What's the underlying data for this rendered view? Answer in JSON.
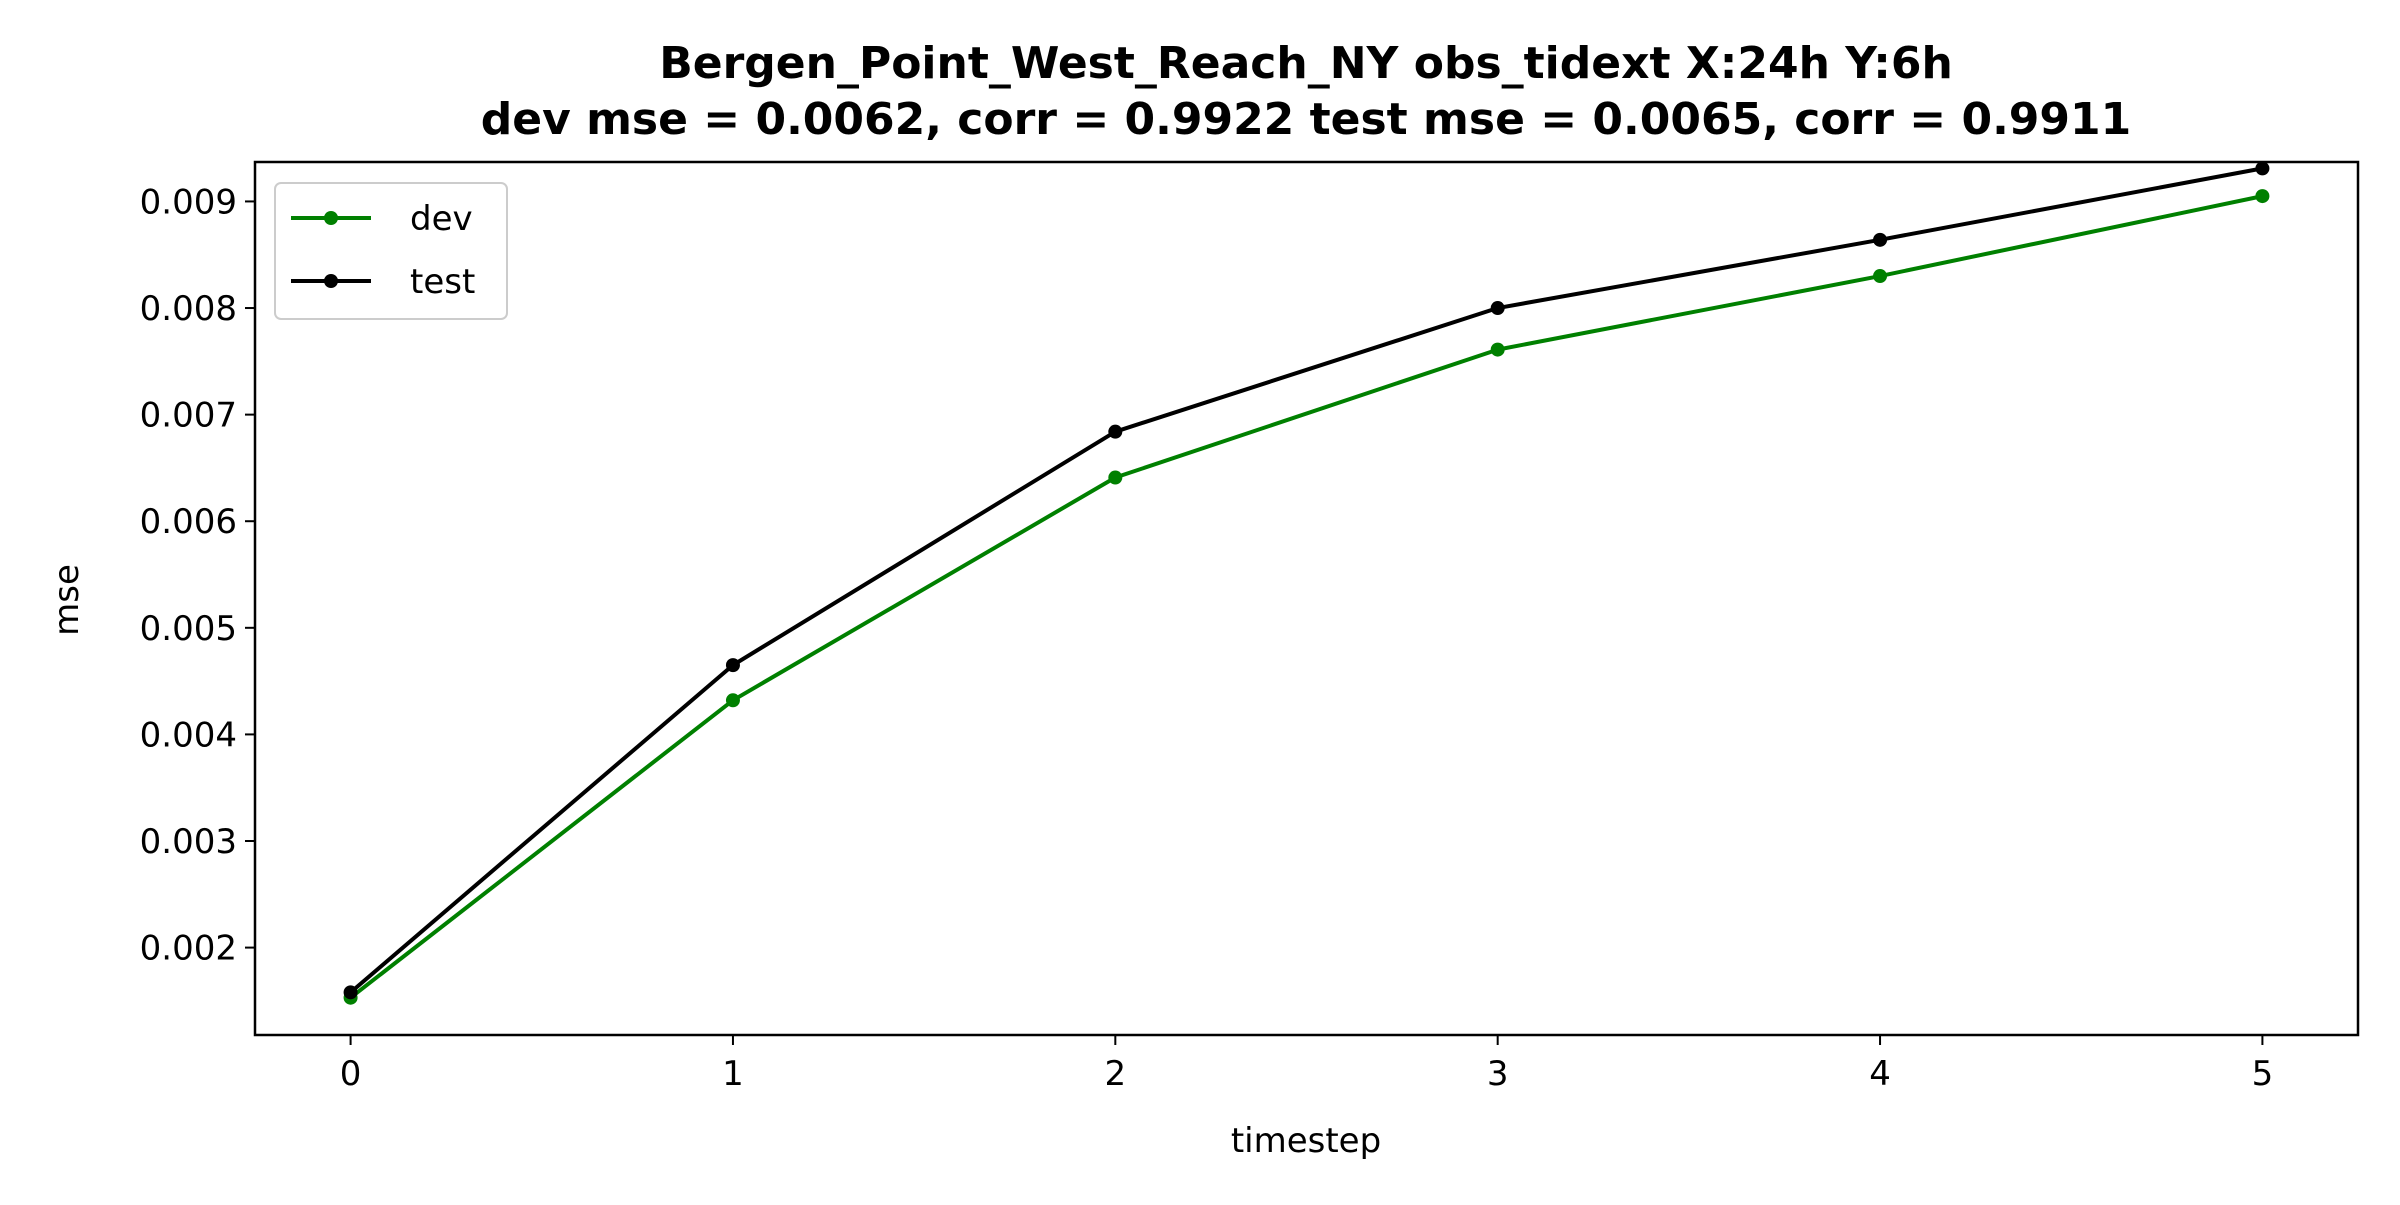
{
  "chart_data": {
    "type": "line",
    "title_line1": "Bergen_Point_West_Reach_NY   obs_tidext   X:24h   Y:6h",
    "title_line2": "dev mse = 0.0062, corr = 0.9922   test mse = 0.0065, corr = 0.9911",
    "xlabel": "timestep",
    "ylabel": "mse",
    "x": [
      0,
      1,
      2,
      3,
      4,
      5
    ],
    "xticks": [
      "0",
      "1",
      "2",
      "3",
      "4",
      "5"
    ],
    "yticks": [
      0.002,
      0.003,
      0.004,
      0.005,
      0.006,
      0.007,
      0.008,
      0.009
    ],
    "ytick_labels": [
      "0.002",
      "0.003",
      "0.004",
      "0.005",
      "0.006",
      "0.007",
      "0.008",
      "0.009"
    ],
    "xlim": [
      -0.25,
      5.25
    ],
    "ylim": [
      0.00118,
      0.00937
    ],
    "grid": false,
    "legend_position": "upper left",
    "series": [
      {
        "name": "dev",
        "color": "#008000",
        "values": [
          0.00153,
          0.00432,
          0.00641,
          0.00761,
          0.0083,
          0.00905
        ]
      },
      {
        "name": "test",
        "color": "#000000",
        "values": [
          0.00158,
          0.00465,
          0.00684,
          0.008,
          0.00864,
          0.00931
        ]
      }
    ]
  }
}
